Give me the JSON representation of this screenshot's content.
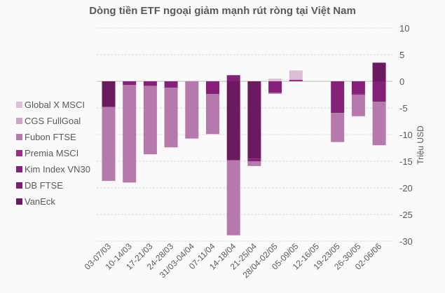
{
  "chart_data": {
    "type": "bar",
    "stacked": true,
    "title": "Dòng tiền ETF ngoại giảm mạnh rút ròng tại Việt Nam",
    "ylabel": "Triệu USD",
    "xlabel": "",
    "ylim": [
      -30,
      10
    ],
    "yticks": [
      10,
      5,
      0,
      -5,
      -10,
      -15,
      -20,
      -25,
      -30
    ],
    "y_axis_side": "right",
    "grid": true,
    "legend_position": "left",
    "categories": [
      "03-07/03",
      "10-14/03",
      "17-21/03",
      "24-28/03",
      "31/03-04/04",
      "07-11/04",
      "14-18/04",
      "21-25/04",
      "28/04-02/05",
      "05-09/05",
      "12-16/05",
      "19-23/05",
      "26-30/05",
      "02-06/06"
    ],
    "series": [
      {
        "name": "VanEck",
        "color": "#6b1a60",
        "values": [
          -4.8,
          0,
          0,
          0,
          0,
          0,
          -14.8,
          -14.5,
          0,
          0,
          0,
          0,
          0,
          3.5
        ]
      },
      {
        "name": "DB FTSE",
        "color": "#7a1f70",
        "values": [
          0,
          0,
          0,
          0,
          0,
          0,
          0,
          0,
          0,
          0,
          0,
          0,
          0,
          0
        ]
      },
      {
        "name": "Kim Index VN30",
        "color": "#842078",
        "values": [
          0,
          -0.7,
          -0.85,
          -1.2,
          0,
          -2.4,
          1.15,
          -0.5,
          -2.15,
          0,
          0,
          -5.95,
          -2.3,
          -3.85
        ]
      },
      {
        "name": "Premia MSCI",
        "color": "#9b2c8b",
        "values": [
          0,
          0,
          0,
          0,
          0,
          0,
          0,
          0,
          0,
          0.3,
          0,
          0,
          -0.25,
          0
        ]
      },
      {
        "name": "Fubon FTSE",
        "color": "#b579ab",
        "values": [
          -13.9,
          -18.3,
          -12.85,
          -11.2,
          -10.7,
          -7.5,
          -14.1,
          -0.9,
          -0.2,
          0,
          0,
          -5.45,
          -3.95,
          -8.15
        ]
      },
      {
        "name": "CGS FullGoal",
        "color": "#cda5c6",
        "values": [
          0,
          0,
          0,
          0,
          -0.1,
          0,
          0,
          0,
          0,
          0,
          0,
          0,
          -0.1,
          0
        ]
      },
      {
        "name": "Global X MSCI",
        "color": "#dbbfd7",
        "values": [
          0,
          0,
          0,
          0,
          0,
          0,
          0,
          0,
          0.5,
          1.75,
          0,
          0,
          0,
          0
        ]
      }
    ]
  }
}
